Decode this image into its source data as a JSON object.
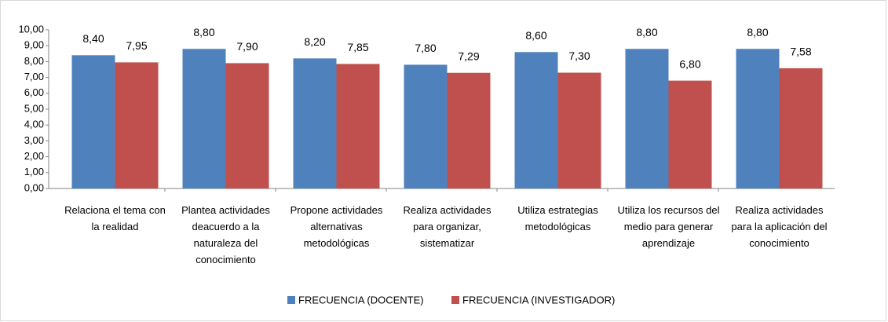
{
  "chart_data": {
    "type": "bar",
    "categories": [
      "Relaciona el tema con la realidad",
      "Plantea actividades deacuerdo a la naturaleza del conocimiento",
      "Propone actividades alternativas metodológicas",
      "Realiza actividades para organizar, sistematizar",
      "Utiliza estrategias metodológicas",
      "Utiliza los recursos del medio para generar aprendizaje",
      "Realiza actividades para la aplicación del conocimiento"
    ],
    "series": [
      {
        "name": "FRECUENCIA (DOCENTE)",
        "color": "#4f81bd",
        "values": [
          8.4,
          8.8,
          8.2,
          7.8,
          8.6,
          8.8,
          8.8
        ],
        "value_labels": [
          "8,40",
          "8,80",
          "8,20",
          "7,80",
          "8,60",
          "8,80",
          "8,80"
        ]
      },
      {
        "name": "FRECUENCIA (INVESTIGADOR)",
        "color": "#c0504d",
        "values": [
          7.95,
          7.9,
          7.85,
          7.29,
          7.3,
          6.8,
          7.58
        ],
        "value_labels": [
          "7,95",
          "7,90",
          "7,85",
          "7,29",
          "7,30",
          "6,80",
          "7,58"
        ]
      }
    ],
    "ylim": [
      0,
      10
    ],
    "yticks": [
      {
        "value": 0,
        "label": "0,00"
      },
      {
        "value": 1,
        "label": "1,00"
      },
      {
        "value": 2,
        "label": "2,00"
      },
      {
        "value": 3,
        "label": "3,00"
      },
      {
        "value": 4,
        "label": "4,00"
      },
      {
        "value": 5,
        "label": "5,00"
      },
      {
        "value": 6,
        "label": "6,00"
      },
      {
        "value": 7,
        "label": "7,00"
      },
      {
        "value": 8,
        "label": "8,00"
      },
      {
        "value": 9,
        "label": "9,00"
      },
      {
        "value": 10,
        "label": "10,00"
      }
    ],
    "grid": false,
    "legend": "bottom"
  }
}
